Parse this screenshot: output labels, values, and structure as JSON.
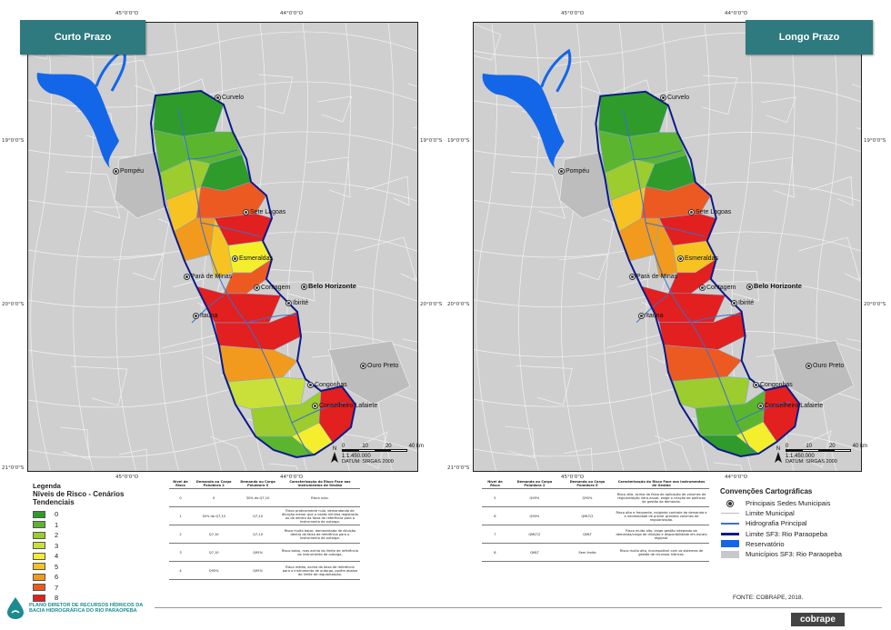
{
  "maps": [
    {
      "id": "left",
      "title": "Curto Prazo",
      "coords": {
        "top_left": "45°0'0\"O",
        "top_right": "44°0'0\"O",
        "bottom_left": "45°0'0\"O",
        "bottom_right": "44°0'0\"O",
        "lat_19_left": "19°0'0\"S",
        "lat_19_right": "19°0'0\"S",
        "lat_20_left": "20°0'0\"S",
        "lat_20_right": "20°0'0\"S",
        "lat_21_left": "21°0'0\"S",
        "lat_21_right": "21°0'0\"S"
      },
      "scale_ratio": "1:1.450.000",
      "datum": "DATUM: SIRGAS 2000"
    },
    {
      "id": "right",
      "title": "Longo Prazo",
      "coords": {
        "top_left": "45°0'0\"O",
        "top_right": "44°0'0\"O",
        "bottom_left": "45°0'0\"O",
        "bottom_right": "44°0'0\"O",
        "lat_19_left": "19°0'0\"S",
        "lat_19_right": "19°0'0\"S",
        "lat_20_left": "20°0'0\"S",
        "lat_20_right": "20°0'0\"S",
        "lat_21_left": "21°0'0\"S",
        "lat_21_right": "21°0'0\"S"
      },
      "scale_ratio": "1:1.450.000",
      "datum": "DATUM: SIRGAS 2000"
    }
  ],
  "cities": {
    "curvelo": "Curvelo",
    "pompeu": "Pompéu",
    "sete_lagoas": "Sete Lagoas",
    "esmeraldas": "Esmeraldas",
    "para_de_minas": "Pará de Minas",
    "contagem": "Contagem",
    "belo_horizonte": "Belo Horizonte",
    "ibirite": "Ibirité",
    "itauna": "Itaúna",
    "ouro_preto": "Ouro Preto",
    "congonhas": "Congonhas",
    "conselheiro_lafaiete": "Conselheiro Lafaiete"
  },
  "scale_ticks": [
    "0",
    "10",
    "20",
    "40 km"
  ],
  "north_label": "N",
  "legend": {
    "title": "Legenda",
    "subtitle_1": "Níveis de Risco - Cenários",
    "subtitle_2": "Tendenciais",
    "items": [
      {
        "label": "0",
        "color": "#2f9b2b"
      },
      {
        "label": "1",
        "color": "#5cb52f"
      },
      {
        "label": "2",
        "color": "#9ccc2e"
      },
      {
        "label": "3",
        "color": "#c9e03a"
      },
      {
        "label": "4",
        "color": "#f4ee2c"
      },
      {
        "label": "5",
        "color": "#f6c322"
      },
      {
        "label": "6",
        "color": "#f29a1e"
      },
      {
        "label": "7",
        "color": "#ec5a22"
      },
      {
        "label": "8",
        "color": "#e2201f"
      }
    ]
  },
  "table_left": {
    "headers": [
      "Nível de Risco",
      "Demanda ou Carga Poluidora 2",
      "Demanda ou Carga Poluidora 5",
      "Caracterização do Risco Face aos Instrumentos de Gestão"
    ],
    "rows": [
      [
        "0",
        "0",
        "30% do Q7,10",
        "Risco nulo."
      ],
      [
        "1",
        "30% do Q7,10",
        "Q7,10",
        "Risco praticamente nulo, demandando de diluição menor que a vazão mínima registrada ou de dentro da faixa de referência para o instrumento de outorga."
      ],
      [
        "2",
        "Q7,10",
        "Q7,10",
        "Risco muito baixo, demandando de diluição dentro da faixa de referência para o instrumento de outorga."
      ],
      [
        "3",
        "Q7,10",
        "Q95%",
        "Risco baixo, mas acima do limite de referência do instrumento de outorga."
      ],
      [
        "4",
        "Q95%",
        "Q95%",
        "Risco médio, acima da faixa de referência para o instrumento de outorga, porém abaixo do limite de regularização."
      ]
    ]
  },
  "table_right": {
    "headers": [
      "Nível de Risco",
      "Demanda ou Carga Poluidora 2",
      "Demanda ou Carga Poluidora 5",
      "Caracterização do Risco Face aos Instrumentos de Gestão"
    ],
    "rows": [
      [
        "5",
        "Q95%",
        "Q90%",
        "Risco alto, acima da faixa de aplicação de volumes de regularização intra-anual; exige a criação de políticas de gestão da demanda."
      ],
      [
        "6",
        "Q90%",
        "QMLT/2",
        "Risco alto e frequente, exigindo controle da demanda e a necessidade de prever grandes volumes de regularização."
      ],
      [
        "7",
        "QMLT/2",
        "QMLT",
        "Risco muito alto, exige gestão integrada da demanda/carga de diluição e disponibilidade em escala regional."
      ],
      [
        "8",
        "QMLT",
        "Sem limite",
        "Risco muito alto, incompatível com os sistemas de gestão de recursos hídricos."
      ]
    ]
  },
  "conventions": {
    "title": "Convenções Cartográficas",
    "items": [
      {
        "label": "Principais Sedes Municipais",
        "symbol": "dot"
      },
      {
        "label": "Limite Municipal",
        "symbol": "thin-line",
        "color": "#bbbbbb"
      },
      {
        "label": "Hidrografia Principal",
        "symbol": "line",
        "color": "#3b6fd0"
      },
      {
        "label": "Limite SF3: Rio Paraopeba",
        "symbol": "thick-line",
        "color": "#0c1a8a"
      },
      {
        "label": "Reservatório",
        "symbol": "fill",
        "color": "#1466e8"
      },
      {
        "label": "Municípios SF3: Rio Paraopeba",
        "symbol": "fill",
        "color": "#c8c8c8"
      }
    ]
  },
  "source": "FONTE: COBRAPE, 2018.",
  "footer": {
    "left_logo_line1": "PLANO DIRETOR DE RECURSOS HÍDRICOS DA",
    "left_logo_line2": "BACIA HIDROGRÁFICA DO RIO PARAOPEBA",
    "right_logo": "cobrape"
  },
  "zone_colors": {
    "left": [
      "#2f9b2b",
      "#5cb52f",
      "#5cb52f",
      "#9ccc2e",
      "#2f9b2b",
      "#f6c322",
      "#ec5a22",
      "#e2201f",
      "#f29a1e",
      "#f6c322",
      "#f4ee2c",
      "#ec5a22",
      "#e2201f",
      "#e2201f",
      "#f29a1e",
      "#c9e03a",
      "#9ccc2e",
      "#5cb52f",
      "#f4ee2c",
      "#e2201f"
    ],
    "right": [
      "#2f9b2b",
      "#5cb52f",
      "#5cb52f",
      "#9ccc2e",
      "#2f9b2b",
      "#f6c322",
      "#ec5a22",
      "#e2201f",
      "#f29a1e",
      "#f29a1e",
      "#f6c322",
      "#e2201f",
      "#e2201f",
      "#e2201f",
      "#ec5a22",
      "#9ccc2e",
      "#5cb52f",
      "#2f9b2b",
      "#f4ee2c",
      "#e2201f"
    ]
  }
}
